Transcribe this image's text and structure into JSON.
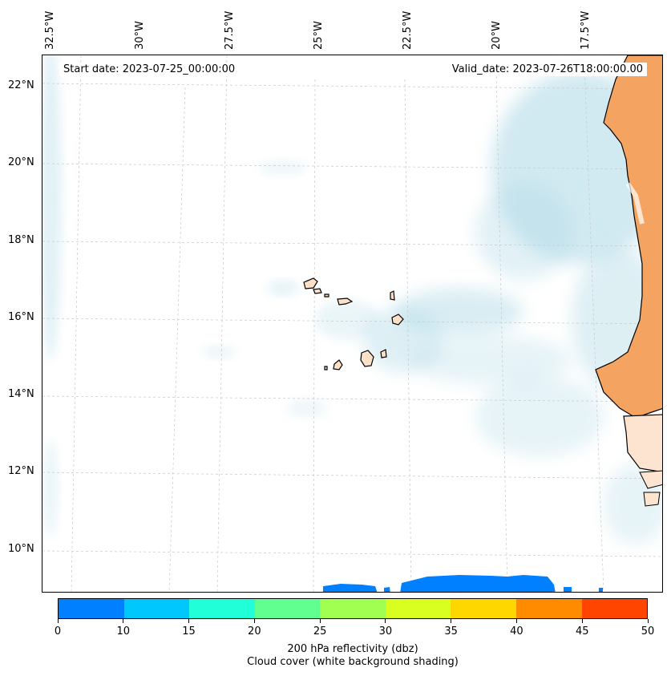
{
  "map": {
    "start_date": "Start date: 2023-07-25_00:00:00",
    "valid_date": "Valid_date: 2023-07-26T18:00:00.00",
    "lon_labels": [
      "32.5°W",
      "30°W",
      "27.5°W",
      "25°W",
      "22.5°W",
      "20°W",
      "17.5°W"
    ],
    "lat_labels": [
      "22°N",
      "20°N",
      "18°N",
      "16°N",
      "14°N",
      "12°N",
      "10°N"
    ],
    "land_color": "#f4a460",
    "cloud_color": "#add8e6",
    "reflectivity_color": "#0080ff",
    "islands": "Cape Verde",
    "coastline": "West Africa (Senegal/Mauritania/Guinea-Bissau)"
  },
  "colorbar": {
    "ticks": [
      "0",
      "10",
      "15",
      "20",
      "25",
      "30",
      "35",
      "40",
      "45",
      "50"
    ],
    "colors": [
      "#0080ff",
      "#00c8ff",
      "#20ffd8",
      "#60ff90",
      "#a0ff50",
      "#d8ff20",
      "#ffd700",
      "#ff8c00",
      "#ff4500"
    ],
    "caption_line1": "200 hPa reflectivity (dbz)",
    "caption_line2": "Cloud cover (white background shading)"
  }
}
